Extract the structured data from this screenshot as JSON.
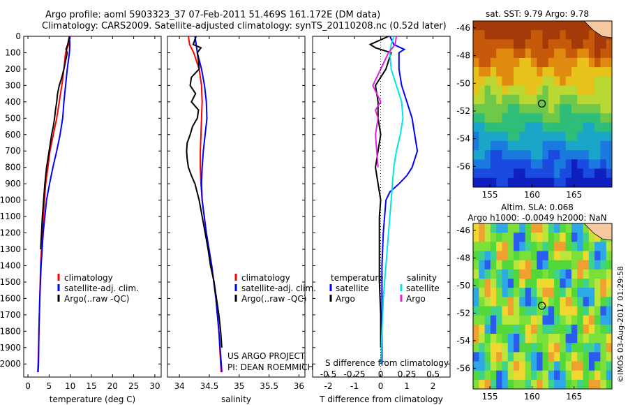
{
  "titles": {
    "line1": "Argo profile: aoml 5903323_37 07-Feb-2011 51.469S 161.172E (DM data)",
    "line2": "Climatology: CARS2009. Satellite-adjusted climatology: synTS_20110208.nc (0.52d later)"
  },
  "colors": {
    "climatology": "#ff0000",
    "satellite": "#0000ff",
    "argo": "#000000",
    "sal_satellite": "#00e5e5",
    "sal_argo": "#e020e0"
  },
  "depth_axis": {
    "ticks": [
      0,
      100,
      200,
      300,
      400,
      500,
      600,
      700,
      800,
      900,
      1000,
      1100,
      1200,
      1300,
      1400,
      1500,
      1600,
      1700,
      1800,
      1900,
      2000
    ],
    "range": [
      0,
      2080
    ]
  },
  "chart_data": [
    {
      "type": "line",
      "name": "temperature-panel",
      "xlabel": "temperature (deg C)",
      "ylabel": "",
      "xlim": [
        -1,
        31.5
      ],
      "ylim": [
        2080,
        0
      ],
      "xticks": [
        0,
        5,
        10,
        15,
        20,
        25,
        30
      ],
      "legend": [
        "climatology",
        "satellite-adj. clim.",
        "Argo(..raw -QC)"
      ],
      "series": [
        {
          "name": "climatology",
          "color": "#ff0000",
          "depth": [
            0,
            50,
            100,
            200,
            300,
            400,
            500,
            600,
            700,
            800,
            900,
            1000,
            1200,
            1400,
            1600,
            1800,
            2000,
            2050
          ],
          "values": [
            9.9,
            9.6,
            8.9,
            8.5,
            8.0,
            7.4,
            6.8,
            6.0,
            5.2,
            4.7,
            4.2,
            3.9,
            3.4,
            3.0,
            2.8,
            2.6,
            2.4,
            2.3
          ]
        },
        {
          "name": "satellite-adj. clim.",
          "color": "#0000ff",
          "depth": [
            0,
            50,
            100,
            200,
            300,
            400,
            500,
            600,
            700,
            800,
            900,
            1000,
            1200,
            1400,
            1600,
            1800,
            2000,
            2050
          ],
          "values": [
            9.8,
            9.9,
            9.8,
            9.3,
            8.9,
            8.5,
            8.2,
            7.6,
            6.8,
            5.9,
            5.1,
            4.4,
            3.6,
            3.1,
            2.8,
            2.6,
            2.5,
            2.4
          ]
        },
        {
          "name": "Argo(..raw -QC)",
          "color": "#000000",
          "depth": [
            0,
            50,
            80,
            100,
            150,
            200,
            250,
            300,
            350,
            400,
            450,
            500,
            550,
            600,
            650,
            700,
            750,
            800,
            850,
            900,
            1000,
            1100,
            1200,
            1300
          ],
          "values": [
            9.8,
            9.4,
            9.0,
            9.3,
            8.9,
            8.5,
            8.0,
            7.4,
            7.0,
            6.8,
            6.5,
            6.3,
            6.0,
            5.6,
            5.3,
            5.0,
            4.7,
            4.4,
            4.2,
            4.0,
            3.7,
            3.4,
            3.2,
            3.0
          ]
        }
      ]
    },
    {
      "type": "line",
      "name": "salinity-panel",
      "xlabel": "salinity",
      "ylabel": "",
      "xlim": [
        33.8,
        36.1
      ],
      "ylim": [
        2080,
        0
      ],
      "xticks": [
        34,
        34.5,
        35,
        35.5,
        36
      ],
      "legend": [
        "climatology",
        "satellite-adj. clim.",
        "Argo(..raw -QC)"
      ],
      "series": [
        {
          "name": "climatology",
          "color": "#ff0000",
          "depth": [
            0,
            50,
            100,
            200,
            300,
            400,
            500,
            600,
            700,
            800,
            900,
            1000,
            1200,
            1400,
            1600,
            1800,
            2000,
            2050
          ],
          "values": [
            34.15,
            34.17,
            34.24,
            34.33,
            34.37,
            34.38,
            34.37,
            34.36,
            34.35,
            34.35,
            34.36,
            34.38,
            34.45,
            34.54,
            34.61,
            34.66,
            34.69,
            34.7
          ]
        },
        {
          "name": "satellite-adj. clim.",
          "color": "#0000ff",
          "depth": [
            0,
            50,
            100,
            200,
            300,
            400,
            500,
            600,
            700,
            800,
            900,
            1000,
            1200,
            1400,
            1600,
            1800,
            2000,
            2050
          ],
          "values": [
            34.26,
            34.28,
            34.3,
            34.37,
            34.42,
            34.45,
            34.46,
            34.43,
            34.4,
            34.38,
            34.37,
            34.38,
            34.45,
            34.54,
            34.61,
            34.66,
            34.7,
            34.71
          ]
        },
        {
          "name": "Argo(..raw -QC)",
          "color": "#000000",
          "depth": [
            0,
            50,
            70,
            100,
            150,
            200,
            250,
            300,
            350,
            400,
            450,
            500,
            550,
            600,
            650,
            700,
            750,
            800,
            850,
            900,
            1000,
            1100,
            1200,
            1300,
            1400,
            1500,
            1600,
            1700,
            1800,
            1900
          ],
          "values": [
            34.28,
            34.23,
            34.36,
            34.3,
            34.32,
            34.33,
            34.2,
            34.18,
            34.27,
            34.2,
            34.32,
            34.3,
            34.22,
            34.18,
            34.13,
            34.12,
            34.13,
            34.15,
            34.2,
            34.26,
            34.33,
            34.38,
            34.43,
            34.48,
            34.52,
            34.58,
            34.62,
            34.66,
            34.69,
            34.71
          ]
        }
      ]
    },
    {
      "type": "line",
      "name": "difference-panel",
      "xlabel": "T difference from climatology",
      "xlabel_top": "S difference from climatology",
      "xlim": [
        -2.6,
        2.65
      ],
      "ylim": [
        2080,
        0
      ],
      "xticks": [
        -2,
        -1,
        0,
        1,
        2
      ],
      "s_ticks": [
        -0.5,
        -0.25,
        0,
        0.25,
        0.5
      ],
      "legend_temperature": [
        "temperature",
        "satellite",
        "Argo"
      ],
      "legend_salinity": [
        "salinity",
        "satellite",
        "Argo"
      ],
      "series": [
        {
          "name": "satellite",
          "color": "#0000ff",
          "depth": [
            0,
            50,
            80,
            100,
            150,
            200,
            300,
            400,
            500,
            600,
            700,
            800,
            850,
            900,
            950,
            1000,
            1100,
            1200,
            1400,
            1600,
            1800,
            2000
          ],
          "values": [
            0.35,
            0.5,
            0.9,
            0.7,
            0.7,
            0.7,
            0.8,
            1.0,
            1.2,
            1.3,
            1.4,
            1.2,
            1.0,
            0.7,
            0.35,
            0.2,
            0.15,
            0.1,
            0.05,
            0.05,
            0.05,
            0.05
          ]
        },
        {
          "name": "Argo",
          "color": "#000000",
          "depth": [
            0,
            50,
            70,
            100,
            150,
            200,
            300,
            400,
            500,
            600,
            700,
            800,
            900,
            1000,
            1100,
            1300,
            1500,
            1700,
            1900
          ],
          "values": [
            0.3,
            -0.4,
            -0.2,
            0.4,
            0.3,
            0.2,
            -0.2,
            -0.1,
            -0.1,
            0.0,
            -0.1,
            -0.2,
            -0.1,
            0.0,
            -0.05,
            -0.05,
            -0.05,
            0.0,
            0.0
          ]
        },
        {
          "name": "salinity satellite",
          "color": "#00e5e5",
          "depth": [
            0,
            50,
            100,
            200,
            300,
            400,
            500,
            600,
            700,
            800,
            900,
            1000,
            1200,
            1400,
            1600,
            1800,
            2000
          ],
          "values": [
            0.5,
            0.4,
            0.35,
            0.4,
            0.6,
            0.8,
            0.85,
            0.75,
            0.6,
            0.5,
            0.45,
            0.4,
            0.3,
            0.2,
            0.1,
            0.05,
            0.0
          ]
        },
        {
          "name": "salinity Argo",
          "color": "#e020e0",
          "depth": [
            0,
            50,
            100,
            200,
            300,
            350,
            400,
            450,
            500,
            600,
            700,
            800
          ],
          "values": [
            0.6,
            0.55,
            0.3,
            0.0,
            -0.3,
            -0.15,
            0.0,
            -0.2,
            -0.1,
            -0.2,
            -0.15,
            -0.1
          ]
        }
      ]
    },
    {
      "type": "heatmap",
      "name": "sst-map",
      "title": "sat. SST: 9.79 Argo: 9.78",
      "xticks": [
        155,
        160,
        165
      ],
      "yticks": [
        -46,
        -48,
        -50,
        -52,
        -54,
        -56
      ],
      "xlim": [
        153,
        169.5
      ],
      "ylim": [
        -57.5,
        -45.5
      ],
      "argo_position": [
        161.172,
        -51.469
      ]
    },
    {
      "type": "heatmap",
      "name": "sla-map",
      "title": "Altim. SLA: 0.068",
      "subtitle": "Argo h1000: -0.0049 h2000: NaN",
      "xticks": [
        155,
        160,
        165
      ],
      "yticks": [
        -46,
        -48,
        -50,
        -52,
        -54,
        -56
      ],
      "xlim": [
        153,
        169.5
      ],
      "ylim": [
        -57.5,
        -45.5
      ],
      "argo_position": [
        161.172,
        -51.469
      ]
    }
  ],
  "annotations": {
    "project": "US ARGO PROJECT",
    "pi": "PI: DEAN ROEMMICH",
    "timestamp": "©IMOS 03-Aug-2017 01:29:58"
  }
}
